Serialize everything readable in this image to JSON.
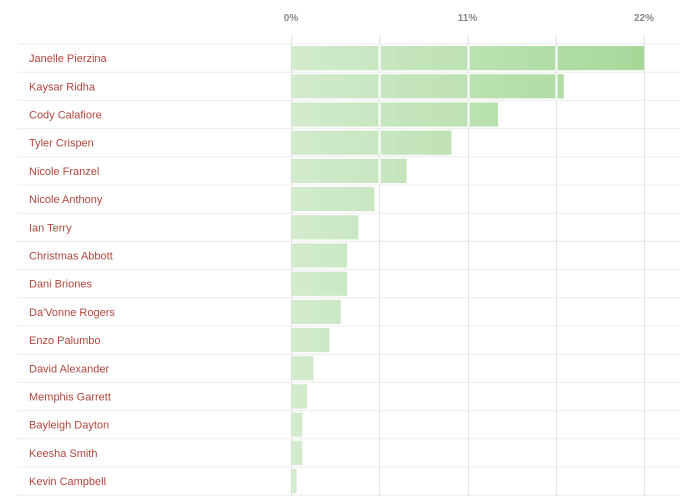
{
  "colors": {
    "bar_light": "#d2ebcd",
    "bar_dark": "#a6d898",
    "name_text": "#b0463c",
    "tick_text": "#888888",
    "row_line": "#ececec",
    "grid_line": "#e2e2e2",
    "divider": "#ffffff"
  },
  "chart_data": {
    "type": "bar",
    "orientation": "horizontal",
    "title": "",
    "xlabel": "",
    "ylabel": "",
    "xlim": [
      0,
      22
    ],
    "xticks": [
      0,
      11,
      22
    ],
    "xtick_labels": [
      "0%",
      "11%",
      "22%"
    ],
    "grid": true,
    "categories": [
      "Janelle Pierzina",
      "Kaysar Ridha",
      "Cody Calafiore",
      "Tyler Crispen",
      "Nicole Franzel",
      "Nicole Anthony",
      "Ian Terry",
      "Christmas Abbott",
      "Dani Briones",
      "Da'Vonne Rogers",
      "Enzo Palumbo",
      "David Alexander",
      "Memphis Garrett",
      "Bayleigh Dayton",
      "Keesha Smith",
      "Kevin Campbell"
    ],
    "values": [
      22,
      17,
      12.9,
      10,
      7.2,
      5.2,
      4.2,
      3.5,
      3.5,
      3.1,
      2.4,
      1.4,
      1.0,
      0.7,
      0.7,
      0.35
    ],
    "unit": "%"
  }
}
